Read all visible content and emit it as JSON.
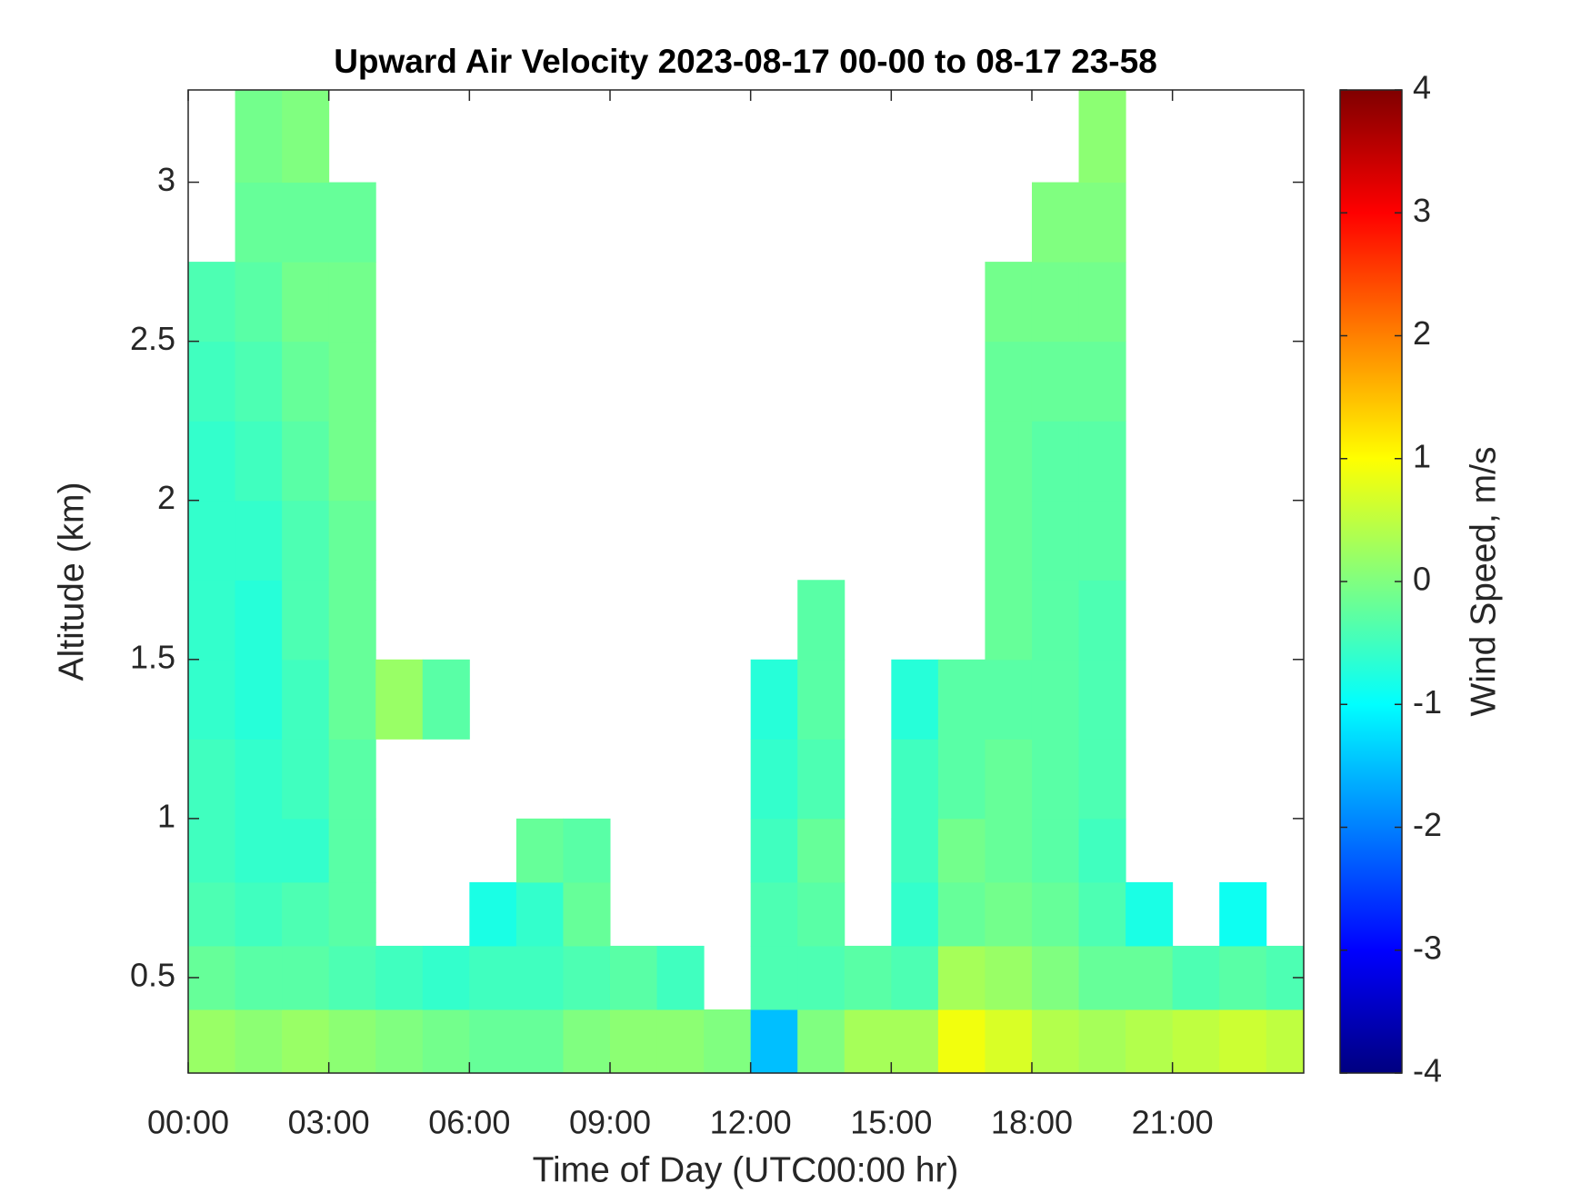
{
  "chart_data": {
    "type": "heatmap",
    "title": "Upward Air Velocity 2023-08-17 00-00 to 08-17 23-58",
    "x_label": "Time of Day (UTC00:00 hr)",
    "y_label": "Altitude (km)",
    "colorbar_label": "Wind Speed, m/s",
    "colormap": "jet",
    "xlim": [
      0,
      23.8
    ],
    "ylim": [
      0.2,
      3.29
    ],
    "xticks": [
      {
        "value": 0,
        "label": "00:00"
      },
      {
        "value": 3,
        "label": "03:00"
      },
      {
        "value": 6,
        "label": "06:00"
      },
      {
        "value": 9,
        "label": "09:00"
      },
      {
        "value": 12,
        "label": "12:00"
      },
      {
        "value": 15,
        "label": "15:00"
      },
      {
        "value": 18,
        "label": "18:00"
      },
      {
        "value": 21,
        "label": "21:00"
      }
    ],
    "yticks": [
      0.5,
      1,
      1.5,
      2,
      2.5,
      3
    ],
    "clim": [
      -4,
      4
    ],
    "cticks": [
      -4,
      -3,
      -2,
      -1,
      0,
      1,
      2,
      3,
      4
    ],
    "x_bins": [
      0,
      1,
      2,
      3,
      4,
      5,
      6,
      7,
      8,
      9,
      10,
      11,
      12,
      13,
      14,
      15,
      16,
      17,
      18,
      19,
      20,
      21,
      22,
      23,
      23.8
    ],
    "y_bins": [
      0.2,
      0.4,
      0.6,
      0.8,
      1,
      1.25,
      1.5,
      1.75,
      2,
      2.25,
      2.5,
      2.75,
      3,
      3.29
    ],
    "values": [
      [
        0.2,
        0.1,
        0.2,
        0.1,
        0.0,
        -0.1,
        -0.2,
        -0.2,
        0.0,
        0.1,
        0.1,
        0.0,
        -1.5,
        0.0,
        0.3,
        0.3,
        0.9,
        0.7,
        0.4,
        0.3,
        0.4,
        0.5,
        0.6,
        0.5
      ],
      [
        -0.2,
        -0.3,
        -0.3,
        -0.4,
        -0.5,
        -0.6,
        -0.5,
        -0.5,
        -0.4,
        -0.3,
        -0.5,
        null,
        -0.4,
        -0.4,
        -0.3,
        -0.4,
        0.3,
        0.2,
        0.0,
        -0.2,
        -0.2,
        -0.4,
        -0.3,
        -0.4
      ],
      [
        -0.4,
        -0.5,
        -0.4,
        -0.3,
        null,
        null,
        -0.8,
        -0.6,
        -0.2,
        null,
        null,
        null,
        -0.4,
        -0.3,
        null,
        -0.6,
        -0.2,
        -0.1,
        -0.2,
        -0.4,
        -0.8,
        null,
        -0.9,
        null
      ],
      [
        -0.5,
        -0.6,
        -0.6,
        -0.3,
        null,
        null,
        null,
        -0.2,
        -0.3,
        null,
        null,
        null,
        -0.5,
        -0.2,
        null,
        -0.5,
        -0.1,
        -0.2,
        -0.3,
        -0.5,
        null,
        null,
        null,
        null
      ],
      [
        -0.5,
        -0.6,
        -0.5,
        -0.3,
        null,
        null,
        null,
        null,
        null,
        null,
        null,
        null,
        -0.6,
        -0.4,
        null,
        -0.5,
        -0.3,
        -0.2,
        -0.3,
        -0.4,
        null,
        null,
        null,
        null
      ],
      [
        -0.6,
        -0.7,
        -0.5,
        -0.2,
        0.2,
        -0.3,
        null,
        null,
        null,
        null,
        null,
        null,
        -0.7,
        -0.3,
        null,
        -0.7,
        -0.3,
        -0.3,
        -0.3,
        -0.4,
        null,
        null,
        null,
        null
      ],
      [
        -0.6,
        -0.7,
        -0.4,
        -0.2,
        null,
        null,
        null,
        null,
        null,
        null,
        null,
        null,
        null,
        -0.3,
        null,
        null,
        null,
        -0.2,
        -0.3,
        -0.4,
        null,
        null,
        null,
        null
      ],
      [
        -0.6,
        -0.6,
        -0.4,
        -0.2,
        null,
        null,
        null,
        null,
        null,
        null,
        null,
        null,
        null,
        null,
        null,
        null,
        null,
        -0.2,
        -0.3,
        -0.3,
        null,
        null,
        null,
        null
      ],
      [
        -0.6,
        -0.5,
        -0.3,
        -0.1,
        null,
        null,
        null,
        null,
        null,
        null,
        null,
        null,
        null,
        null,
        null,
        null,
        null,
        -0.2,
        -0.3,
        -0.3,
        null,
        null,
        null,
        null
      ],
      [
        -0.5,
        -0.4,
        -0.2,
        -0.1,
        null,
        null,
        null,
        null,
        null,
        null,
        null,
        null,
        null,
        null,
        null,
        null,
        null,
        -0.2,
        -0.2,
        -0.2,
        null,
        null,
        null,
        null
      ],
      [
        -0.4,
        -0.3,
        -0.1,
        -0.1,
        null,
        null,
        null,
        null,
        null,
        null,
        null,
        null,
        null,
        null,
        null,
        null,
        null,
        -0.1,
        -0.1,
        -0.1,
        null,
        null,
        null,
        null
      ],
      [
        null,
        -0.2,
        -0.2,
        -0.2,
        null,
        null,
        null,
        null,
        null,
        null,
        null,
        null,
        null,
        null,
        null,
        null,
        null,
        null,
        0.0,
        0.0,
        null,
        null,
        null,
        null
      ],
      [
        null,
        -0.1,
        0.0,
        null,
        null,
        null,
        null,
        null,
        null,
        null,
        null,
        null,
        null,
        null,
        null,
        null,
        null,
        null,
        null,
        0.1,
        null,
        null,
        null,
        null
      ]
    ]
  }
}
